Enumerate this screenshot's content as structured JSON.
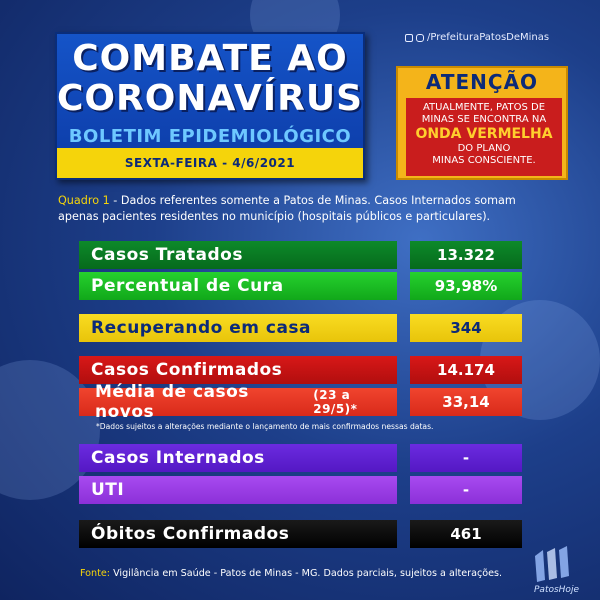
{
  "header": {
    "title_line1": "COMBATE AO",
    "title_line2": "CORONAVÍRUS",
    "subtitle": "BOLETIM EPIDEMIOLÓGICO",
    "date": "SEXTA-FEIRA - 4/6/2021"
  },
  "social": {
    "handle": "/PrefeituraPatosDeMinas",
    "icons": [
      "facebook-icon",
      "instagram-icon"
    ]
  },
  "alert": {
    "title": "ATENÇÃO",
    "line1": "ATUALMENTE, PATOS DE",
    "line2": "MINAS SE ENCONTRA NA",
    "highlight": "ONDA VERMELHA",
    "line3": "DO PLANO",
    "line4": "MINAS CONSCIENTE."
  },
  "note": {
    "label": "Quadro 1",
    "text": " - Dados referentes somente a Patos de Minas. Casos Internados somam apenas pacientes residentes no município (hospitais públicos e particulares)."
  },
  "stats": {
    "tratados": {
      "label": "Casos Tratados",
      "value": "13.322"
    },
    "cura": {
      "label": "Percentual de Cura",
      "value": "93,98%"
    },
    "recuperando": {
      "label": "Recuperando em casa",
      "value": "344"
    },
    "confirmados": {
      "label": "Casos Confirmados",
      "value": "14.174"
    },
    "media": {
      "label": "Média de casos novos",
      "label_sub": "(23 a 29/5)*",
      "value": "33,14"
    },
    "internados": {
      "label": "Casos Internados",
      "value": "-"
    },
    "uti": {
      "label": "UTI",
      "value": "-"
    },
    "obitos": {
      "label": "Óbitos Confirmados",
      "value": "461"
    }
  },
  "fine_print": "*Dados sujeitos a alterações mediante o lançamento de mais confirmados nessas datas.",
  "source": {
    "label": "Fonte:",
    "text": " Vigilância em Saúde - Patos de Minas - MG. Dados parciais, sujeitos a alterações."
  },
  "logo_text": "PatosHoje",
  "colors": {
    "brand_blue": "#0c3aa5",
    "accent_yellow": "#f5d40b",
    "alert_orange": "#f4b41a",
    "alert_red": "#c91d1d"
  }
}
